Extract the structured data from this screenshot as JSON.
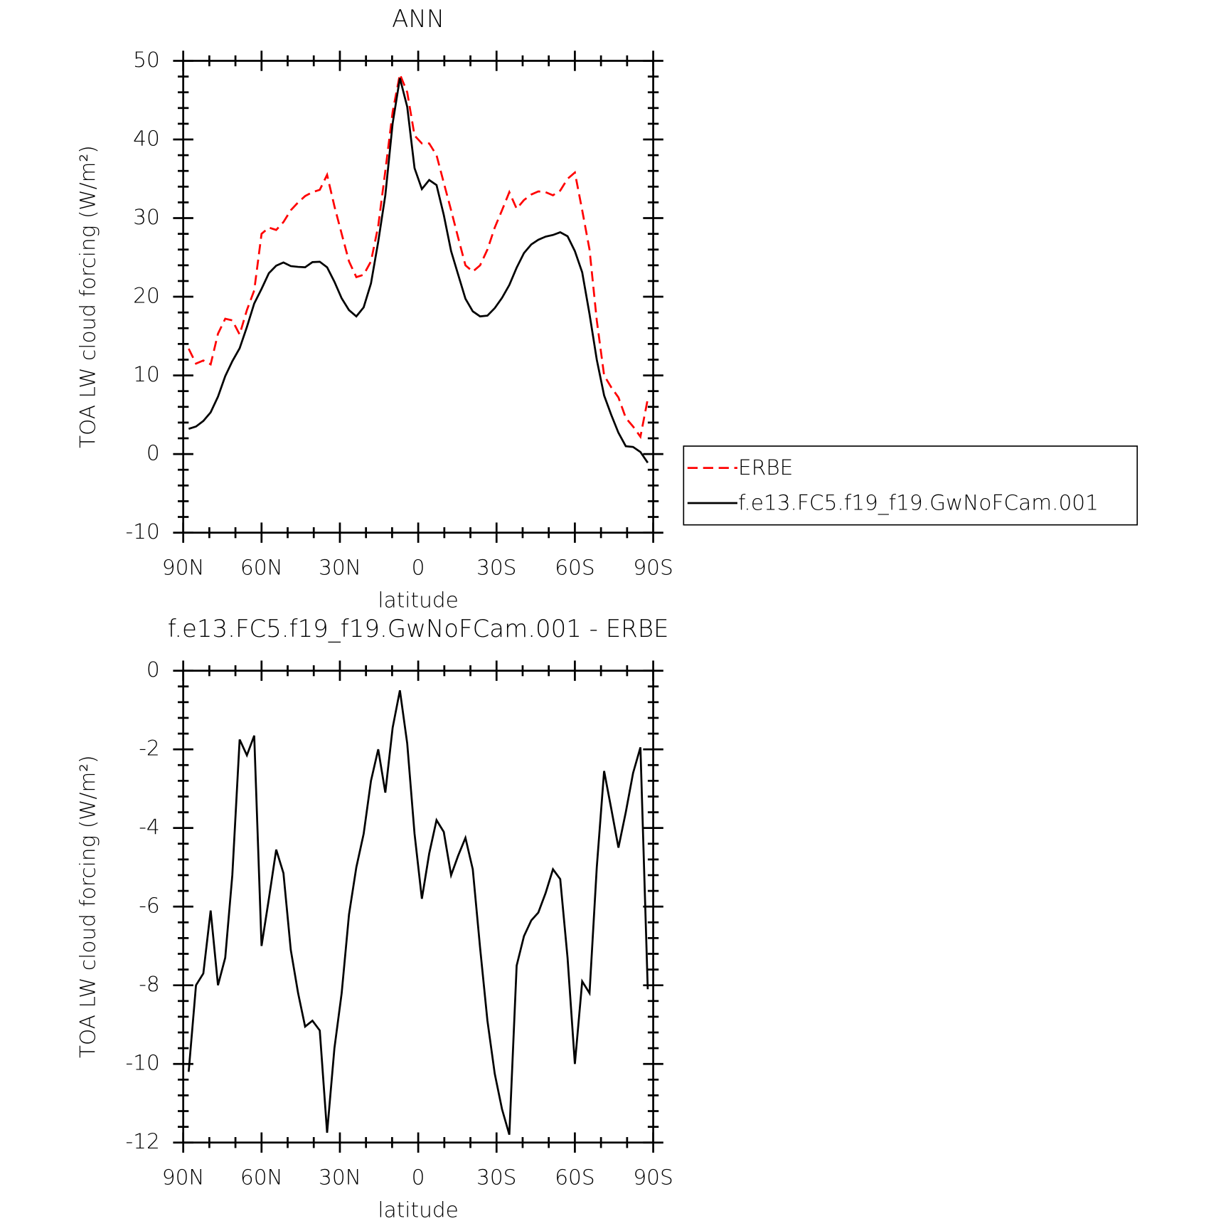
{
  "chart_data": [
    {
      "type": "line",
      "title": "ANN",
      "x": [
        87.9,
        85.1,
        82.3,
        79.5,
        76.7,
        73.9,
        71.2,
        68.4,
        65.6,
        62.8,
        60.0,
        57.2,
        54.4,
        51.6,
        48.8,
        46.0,
        43.3,
        40.5,
        37.7,
        34.9,
        32.1,
        29.3,
        26.5,
        23.7,
        20.9,
        18.1,
        15.3,
        12.6,
        9.8,
        7.0,
        4.2,
        1.4,
        -1.4,
        -4.2,
        -7.0,
        -9.8,
        -12.6,
        -15.3,
        -18.1,
        -20.9,
        -23.7,
        -26.5,
        -29.3,
        -32.1,
        -34.9,
        -37.7,
        -40.5,
        -43.3,
        -46.0,
        -48.8,
        -51.6,
        -54.4,
        -57.2,
        -60.0,
        -62.8,
        -65.6,
        -68.4,
        -71.2,
        -73.9,
        -76.7,
        -79.5,
        -82.3,
        -85.1,
        -87.9
      ],
      "xlim": [
        90,
        -90
      ],
      "xticks": [
        {
          "value": 90,
          "label": "90N"
        },
        {
          "value": 60,
          "label": "60N"
        },
        {
          "value": 30,
          "label": "30N"
        },
        0,
        {
          "value": -30,
          "label": "30S"
        },
        {
          "value": -60,
          "label": "60S"
        },
        {
          "value": -90,
          "label": "90S"
        }
      ],
      "ylim": [
        -10,
        50
      ],
      "yticks": [
        -10,
        0,
        10,
        20,
        30,
        40,
        50
      ],
      "xlabel": "latitude",
      "ylabel": "TOA LW cloud forcing (W/m²)",
      "legend": "right",
      "series": [
        {
          "name": "ERBE",
          "color": "#ff0000",
          "dash": true,
          "values": [
            13.4,
            11.5,
            11.9,
            11.4,
            15.3,
            17.2,
            17.0,
            15.2,
            18.3,
            20.8,
            28.0,
            28.8,
            28.5,
            29.5,
            31.0,
            32.0,
            32.8,
            33.3,
            33.6,
            35.5,
            31.5,
            28.0,
            24.5,
            22.5,
            22.8,
            24.5,
            29.0,
            36.0,
            43.5,
            48.3,
            46.0,
            40.5,
            39.5,
            39.5,
            38.0,
            34.5,
            31.0,
            27.5,
            24.0,
            23.2,
            24.0,
            26.0,
            28.8,
            31.0,
            33.3,
            31.2,
            32.3,
            33.0,
            33.4,
            33.3,
            32.9,
            33.5,
            35.0,
            35.8,
            31.0,
            26.0,
            17.0,
            10.0,
            8.5,
            7.2,
            4.6,
            3.5,
            2.2,
            7.0
          ]
        },
        {
          "name": "f.e13.FC5.f19_f19.GwNoFCam.001",
          "color": "#000000",
          "dash": false,
          "values": [
            3.2,
            3.5,
            4.2,
            5.3,
            7.3,
            9.9,
            11.8,
            13.45,
            16.15,
            19.15,
            21.0,
            23.0,
            23.95,
            24.35,
            23.9,
            23.8,
            23.75,
            24.4,
            24.45,
            23.75,
            21.9,
            19.8,
            18.3,
            17.5,
            18.65,
            21.7,
            27.0,
            32.9,
            42.05,
            47.8,
            44.15,
            36.35,
            33.7,
            34.85,
            34.2,
            30.4,
            25.8,
            22.8,
            19.75,
            18.15,
            17.5,
            17.6,
            18.55,
            19.85,
            21.5,
            23.7,
            25.55,
            26.65,
            27.25,
            27.65,
            27.85,
            28.2,
            27.7,
            25.8,
            23.1,
            17.8,
            12.0,
            7.45,
            5.0,
            2.7,
            1.0,
            0.9,
            0.25,
            -1.1
          ]
        }
      ]
    },
    {
      "type": "line",
      "title": "f.e13.FC5.f19_f19.GwNoFCam.001 - ERBE",
      "x": [
        87.9,
        85.1,
        82.3,
        79.5,
        76.7,
        73.9,
        71.2,
        68.4,
        65.6,
        62.8,
        60.0,
        57.2,
        54.4,
        51.6,
        48.8,
        46.0,
        43.3,
        40.5,
        37.7,
        34.9,
        32.1,
        29.3,
        26.5,
        23.7,
        20.9,
        18.1,
        15.3,
        12.6,
        9.8,
        7.0,
        4.2,
        1.4,
        -1.4,
        -4.2,
        -7.0,
        -9.8,
        -12.6,
        -15.3,
        -18.1,
        -20.9,
        -23.7,
        -26.5,
        -29.3,
        -32.1,
        -34.9,
        -37.7,
        -40.5,
        -43.3,
        -46.0,
        -48.8,
        -51.6,
        -54.4,
        -57.2,
        -60.0,
        -62.8,
        -65.6,
        -68.4,
        -71.2,
        -73.9,
        -76.7,
        -79.5,
        -82.3,
        -85.1,
        -87.9
      ],
      "xlim": [
        90,
        -90
      ],
      "xticks": [
        {
          "value": 90,
          "label": "90N"
        },
        {
          "value": 60,
          "label": "60N"
        },
        {
          "value": 30,
          "label": "30N"
        },
        0,
        {
          "value": -30,
          "label": "30S"
        },
        {
          "value": -60,
          "label": "60S"
        },
        {
          "value": -90,
          "label": "90S"
        }
      ],
      "ylim": [
        -12,
        0
      ],
      "yticks": [
        -12,
        -10,
        -8,
        -6,
        -4,
        -2,
        0
      ],
      "xlabel": "latitude",
      "ylabel": "TOA LW cloud forcing (W/m²)",
      "series": [
        {
          "color": "#000000",
          "dash": false,
          "values": [
            -10.2,
            -8.0,
            -7.7,
            -6.1,
            -8.0,
            -7.3,
            -5.2,
            -1.75,
            -2.15,
            -1.65,
            -7.0,
            -5.8,
            -4.55,
            -5.15,
            -7.1,
            -8.2,
            -9.05,
            -8.9,
            -9.15,
            -11.75,
            -9.6,
            -8.2,
            -6.2,
            -5.0,
            -4.15,
            -2.8,
            -2.0,
            -3.1,
            -1.45,
            -0.5,
            -1.85,
            -4.15,
            -5.8,
            -4.65,
            -3.8,
            -4.1,
            -5.2,
            -4.7,
            -4.25,
            -5.05,
            -7.05,
            -8.9,
            -10.25,
            -11.15,
            -11.8,
            -7.5,
            -6.75,
            -6.35,
            -6.15,
            -5.65,
            -5.05,
            -5.3,
            -7.3,
            -10.0,
            -7.9,
            -8.2,
            -5.0,
            -2.55,
            -3.5,
            -4.5,
            -3.6,
            -2.6,
            -1.95,
            -8.1
          ]
        }
      ]
    }
  ]
}
